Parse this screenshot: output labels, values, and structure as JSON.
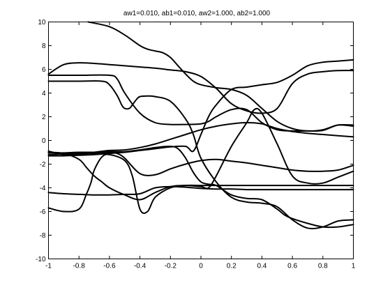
{
  "chart_data": {
    "type": "line",
    "title": "aw1=0.010, ab1=0.010, aw2=1.000, ab2=1.000",
    "xlabel": "",
    "ylabel": "",
    "xlim": [
      -1,
      1
    ],
    "ylim": [
      -10,
      10
    ],
    "grid": false,
    "xticks": [
      -1,
      -0.8,
      -0.6,
      -0.4,
      -0.2,
      0,
      0.2,
      0.4,
      0.6,
      0.8,
      1
    ],
    "xtick_labels": [
      "-1",
      "-0.8",
      "-0.6",
      "-0.4",
      "-0.2",
      "0",
      "0.2",
      "0.4",
      "0.6",
      "0.8",
      "1"
    ],
    "yticks": [
      -10,
      -8,
      -6,
      -4,
      -2,
      0,
      2,
      4,
      6,
      8,
      10
    ],
    "ytick_labels": [
      "-10",
      "-8",
      "-6",
      "-4",
      "-2",
      "0",
      "2",
      "4",
      "6",
      "8",
      "10"
    ],
    "series": [
      {
        "x": [
          -0.74,
          -0.6,
          -0.5,
          -0.4,
          -0.35,
          -0.3,
          -0.25,
          -0.2,
          -0.15,
          -0.1,
          -0.05,
          0,
          0.1,
          0.2,
          0.3,
          0.4,
          0.5,
          0.6,
          0.7,
          0.8,
          0.9,
          1.0
        ],
        "values": [
          10.0,
          9.6,
          8.9,
          8.0,
          7.7,
          7.55,
          7.4,
          7.0,
          6.3,
          5.6,
          5.0,
          4.7,
          4.45,
          4.3,
          3.8,
          2.7,
          1.6,
          1.0,
          0.8,
          0.9,
          1.3,
          1.3
        ]
      },
      {
        "x": [
          -1.0,
          -0.9,
          -0.8,
          -0.7,
          -0.6,
          -0.5,
          -0.4,
          -0.3,
          -0.2,
          -0.1,
          0,
          0.1,
          0.2,
          0.3,
          0.4,
          0.5,
          0.6,
          0.7,
          0.8,
          0.9,
          1.0
        ],
        "values": [
          5.6,
          6.4,
          6.55,
          6.5,
          6.4,
          6.3,
          6.2,
          6.1,
          5.95,
          5.8,
          5.4,
          4.4,
          3.1,
          2.5,
          2.3,
          2.7,
          4.8,
          5.6,
          5.8,
          5.9,
          5.9
        ]
      },
      {
        "x": [
          -1.0,
          -0.8,
          -0.65,
          -0.6,
          -0.55,
          -0.52,
          -0.5,
          -0.47,
          -0.45,
          -0.42,
          -0.4,
          -0.35,
          -0.3,
          -0.2,
          -0.1,
          -0.05,
          0,
          0.1,
          0.2,
          0.3,
          0.4,
          0.5,
          0.6,
          0.7,
          0.8,
          0.9,
          1.0
        ],
        "values": [
          5.0,
          5.0,
          5.0,
          4.7,
          3.8,
          3.0,
          2.7,
          2.7,
          3.0,
          3.5,
          3.7,
          3.75,
          3.7,
          3.3,
          1.8,
          0.5,
          -1.5,
          -3.5,
          -4.8,
          -5.2,
          -5.3,
          -5.6,
          -6.7,
          -7.4,
          -7.3,
          -6.8,
          -6.7
        ]
      },
      {
        "x": [
          -1.0,
          -0.8,
          -0.6,
          -0.55,
          -0.5,
          -0.4,
          -0.3,
          -0.2,
          -0.1,
          0,
          0.05,
          0.1,
          0.2,
          0.3,
          0.4,
          0.5,
          0.6,
          0.7,
          0.8,
          0.9,
          1.0
        ],
        "values": [
          5.5,
          5.5,
          5.5,
          5.2,
          4.0,
          2.3,
          1.5,
          1.35,
          1.35,
          1.4,
          1.6,
          2.0,
          2.6,
          2.6,
          1.5,
          0.9,
          0.8,
          0.8,
          0.85,
          1.3,
          1.2
        ]
      },
      {
        "x": [
          -1.0,
          -0.9,
          -0.8,
          -0.7,
          -0.6,
          -0.5,
          -0.4,
          -0.3,
          -0.2,
          -0.1,
          0,
          0.1,
          0.2,
          0.3,
          0.4,
          0.5,
          0.6,
          0.7,
          0.8,
          0.9,
          1.0
        ],
        "values": [
          -0.9,
          -1.2,
          -1.2,
          -1.0,
          -0.85,
          -0.8,
          -0.6,
          -0.3,
          0.1,
          0.5,
          0.9,
          1.2,
          1.4,
          1.5,
          1.4,
          1.0,
          0.75,
          0.6,
          0.5,
          0.4,
          0.3
        ]
      },
      {
        "x": [
          -1.0,
          -0.9,
          -0.8,
          -0.7,
          -0.6,
          -0.5,
          -0.4,
          -0.3,
          -0.2,
          -0.1,
          -0.05,
          0,
          0.05,
          0.1,
          0.2,
          0.3,
          0.4,
          0.5,
          0.6,
          0.7,
          0.8,
          0.9,
          1.0
        ],
        "values": [
          -1.3,
          -1.3,
          -1.25,
          -1.2,
          -1.1,
          -1.0,
          -0.85,
          -0.7,
          -0.55,
          -0.5,
          -0.9,
          0.5,
          2.0,
          3.0,
          4.3,
          4.5,
          4.7,
          4.9,
          5.5,
          6.3,
          6.6,
          6.7,
          6.8
        ]
      },
      {
        "x": [
          -1.0,
          -0.9,
          -0.8,
          -0.7,
          -0.6,
          -0.55,
          -0.5,
          -0.4,
          -0.3,
          -0.2,
          -0.1,
          0,
          0.1,
          0.2,
          0.3,
          0.4,
          0.5,
          0.6,
          0.7,
          0.8,
          0.9,
          1.0
        ],
        "values": [
          -1.2,
          -1.15,
          -1.1,
          -1.1,
          -1.0,
          -1.1,
          -1.5,
          -2.8,
          -2.9,
          -2.4,
          -2.0,
          -1.7,
          -1.6,
          -1.75,
          -1.9,
          -2.1,
          -2.3,
          -2.5,
          -2.6,
          -2.6,
          -2.5,
          -2.1
        ]
      },
      {
        "x": [
          -1.0,
          -0.9,
          -0.8,
          -0.75,
          -0.7,
          -0.65,
          -0.6,
          -0.5,
          -0.4,
          -0.3,
          -0.2,
          -0.1,
          0,
          0.05,
          0.1,
          0.2,
          0.3,
          0.35,
          0.4,
          0.5,
          0.6,
          0.7,
          0.8,
          0.9,
          1.0
        ],
        "values": [
          -1.0,
          -1.1,
          -1.6,
          -2.3,
          -3.0,
          -3.5,
          -4.0,
          -4.6,
          -5.0,
          -4.4,
          -3.9,
          -3.8,
          -3.9,
          -4.0,
          -3.0,
          -0.5,
          1.5,
          2.6,
          2.3,
          -0.3,
          -3.0,
          -3.6,
          -3.6,
          -3.1,
          -2.6
        ]
      },
      {
        "x": [
          -1.0,
          -0.9,
          -0.8,
          -0.75,
          -0.72,
          -0.7,
          -0.65,
          -0.6,
          -0.5,
          -0.45,
          -0.4,
          -0.35,
          -0.3,
          -0.2,
          -0.1,
          0,
          0.1,
          0.2,
          0.3,
          0.4,
          0.5,
          0.6,
          0.7,
          0.8,
          0.9,
          1.0
        ],
        "values": [
          -5.7,
          -6.0,
          -5.8,
          -4.5,
          -3.5,
          -2.5,
          -1.4,
          -1.2,
          -1.7,
          -3.0,
          -5.8,
          -6.0,
          -4.8,
          -4.0,
          -3.8,
          -3.8,
          -3.8,
          -3.8,
          -3.8,
          -3.8,
          -3.8,
          -3.8,
          -3.8,
          -3.8,
          -3.8,
          -3.8
        ]
      },
      {
        "x": [
          -1.0,
          -0.9,
          -0.8,
          -0.7,
          -0.6,
          -0.5,
          -0.4,
          -0.3,
          -0.2,
          -0.1,
          0,
          0.1,
          0.2,
          0.3,
          0.4,
          0.5,
          0.6,
          0.7,
          0.8,
          0.9,
          1.0
        ],
        "values": [
          -4.4,
          -4.5,
          -4.55,
          -4.6,
          -4.6,
          -4.55,
          -4.5,
          -4.0,
          -3.9,
          -3.95,
          -4.05,
          -4.1,
          -4.1,
          -4.15,
          -4.15,
          -4.15,
          -4.15,
          -4.15,
          -4.15,
          -4.15,
          -4.15
        ]
      },
      {
        "x": [
          -1.0,
          -0.9,
          -0.8,
          -0.7,
          -0.6,
          -0.5,
          -0.4,
          -0.3,
          -0.2,
          -0.15,
          -0.1,
          -0.05,
          0,
          0.05,
          0.1,
          0.2,
          0.3,
          0.4,
          0.5,
          0.55,
          0.6,
          0.7,
          0.8,
          0.9,
          1.0
        ],
        "values": [
          -1.05,
          -1.05,
          -1.0,
          -1.0,
          -0.95,
          -0.95,
          -0.8,
          -0.6,
          -0.5,
          -0.7,
          -1.5,
          -2.7,
          -3.5,
          -3.7,
          -3.8,
          -4.6,
          -4.9,
          -5.0,
          -5.8,
          -6.3,
          -6.6,
          -7.0,
          -7.3,
          -7.3,
          -7.1
        ]
      }
    ]
  }
}
